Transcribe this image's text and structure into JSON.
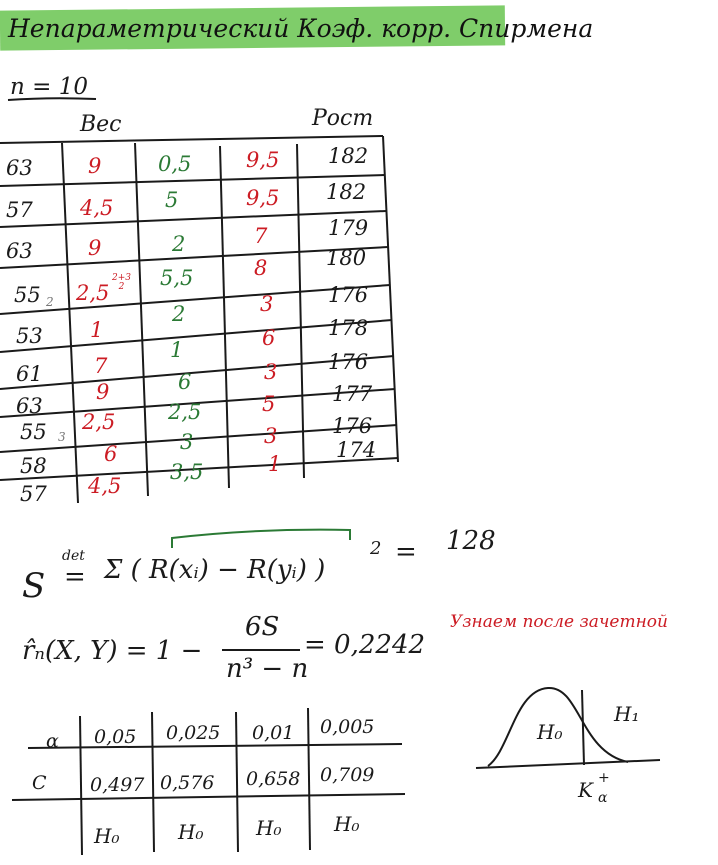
{
  "title": "Непараметрический Коэф. корр. Спирмена",
  "n_label": "n = 10",
  "columns": {
    "weight": "Вес",
    "height": "Рост"
  },
  "rows": [
    {
      "weight": "63",
      "rank_x": "9",
      "diff": "0,5",
      "rank_y": "9,5",
      "height": "182"
    },
    {
      "weight": "57",
      "rank_x": "4,5",
      "diff": "5",
      "rank_y": "9,5",
      "height": "182"
    },
    {
      "weight": "63",
      "rank_x": "9",
      "diff": "2",
      "rank_y": "7",
      "height": "179"
    },
    {
      "weight": "55",
      "rank_x": "2,5",
      "diff": "5,5",
      "rank_y": "8",
      "height": "180",
      "rank_x_note": "2+3",
      "rank_x_note_den": "2",
      "weight_mark": "2"
    },
    {
      "weight": "53",
      "rank_x": "1",
      "diff": "2",
      "rank_y": "3",
      "height": "176"
    },
    {
      "weight": "61",
      "rank_x": "7",
      "diff": "1",
      "rank_y": "6",
      "height": "178"
    },
    {
      "weight": "63",
      "rank_x": "9",
      "diff": "6",
      "rank_y": "3",
      "height": "176"
    },
    {
      "weight": "55",
      "rank_x": "2,5",
      "diff": "2,5",
      "rank_y": "5",
      "height": "177",
      "weight_mark": "3"
    },
    {
      "weight": "58",
      "rank_x": "6",
      "diff": "3",
      "rank_y": "3",
      "height": "176"
    },
    {
      "weight": "57",
      "rank_x": "4,5",
      "diff": "3,5",
      "rank_y": "1",
      "height": "174"
    }
  ],
  "formula_s": {
    "lhs": "S",
    "def": "det",
    "eq": "=",
    "body": "Σ ( R(xᵢ) − R(yᵢ) )",
    "power": "2",
    "eq2": "=",
    "value": "128"
  },
  "formula_r": {
    "lhs": "r̂ₙ(X, Y) = 1 −",
    "numerator": "6S",
    "denominator": "n³ − n",
    "result": "= 0,2242",
    "note": "Узнаем после зачетной"
  },
  "crit_table": {
    "alpha_label": "α",
    "alphas": [
      "0,05",
      "0,025",
      "0,01",
      "0,005"
    ],
    "c_label": "C",
    "c_values": [
      "0,497",
      "0,576",
      "0,658",
      "0,709"
    ],
    "decisions": [
      "H₀",
      "H₀",
      "H₀",
      "H₀"
    ]
  },
  "sketch": {
    "h0": "H₀",
    "h1": "H₁",
    "crit": "K",
    "crit_sup": "+",
    "crit_sub": "α"
  }
}
